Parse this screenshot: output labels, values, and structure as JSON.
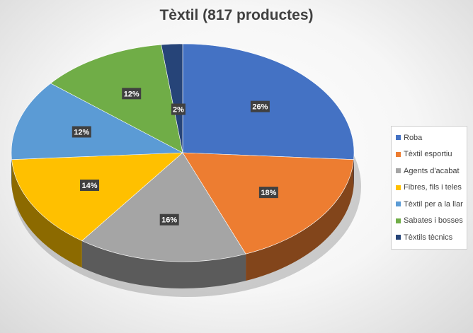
{
  "chart_data": {
    "type": "pie",
    "title": "Tèxtil (817 productes)",
    "legend_position": "right",
    "categories": [
      "Roba",
      "Tèxtil esportiu",
      "Agents d'acabat",
      "Fibres, fils i teles",
      "Tèxtil per a la llar",
      "Sabates i bosses",
      "Tèxtils tècnics"
    ],
    "values": [
      26,
      18,
      16,
      14,
      12,
      12,
      2
    ],
    "labels": [
      "26%",
      "18%",
      "16%",
      "14%",
      "12%",
      "12%",
      "2%"
    ],
    "colors": [
      "#4472c4",
      "#ed7d31",
      "#a5a5a5",
      "#ffc000",
      "#5b9bd5",
      "#70ad47",
      "#264478"
    ]
  }
}
